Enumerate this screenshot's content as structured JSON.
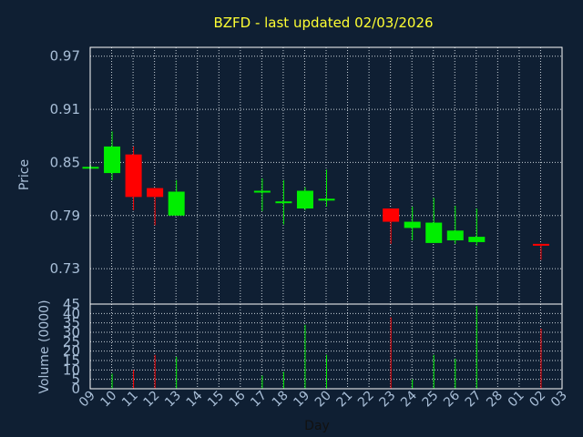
{
  "chart_data": {
    "type": "candlestick",
    "title": "BZFD - last updated 02/03/2026",
    "xlabel": "Day",
    "price_panel": {
      "ylabel": "Price",
      "ylim": [
        0.69,
        0.98
      ],
      "yticks": [
        "0.97",
        "0.91",
        "0.85",
        "0.79",
        "0.73"
      ],
      "ytick_values": [
        0.97,
        0.91,
        0.85,
        0.79,
        0.73
      ]
    },
    "volume_panel": {
      "ylabel": "Volume (0000)",
      "ylim": [
        0,
        45
      ],
      "yticks": [
        "45",
        "40",
        "35",
        "30",
        "25",
        "20",
        "15",
        "10",
        "5",
        "0"
      ],
      "ytick_values": [
        45,
        40,
        35,
        30,
        25,
        20,
        15,
        10,
        5,
        0
      ]
    },
    "x_tick_labels": [
      "09",
      "10",
      "11",
      "12",
      "13",
      "14",
      "15",
      "16",
      "17",
      "18",
      "19",
      "20",
      "21",
      "22",
      "23",
      "24",
      "25",
      "26",
      "27",
      "28",
      "01",
      "02",
      "03"
    ],
    "candles": [
      {
        "day": "09",
        "open": 0.845,
        "high": 0.847,
        "low": 0.845,
        "close": 0.845,
        "volume": 0
      },
      {
        "day": "10",
        "open": 0.838,
        "high": 0.885,
        "low": 0.83,
        "close": 0.868,
        "volume": 8
      },
      {
        "day": "11",
        "open": 0.859,
        "high": 0.868,
        "low": 0.796,
        "close": 0.811,
        "volume": 10
      },
      {
        "day": "12",
        "open": 0.821,
        "high": 0.821,
        "low": 0.779,
        "close": 0.811,
        "volume": 18
      },
      {
        "day": "13",
        "open": 0.79,
        "high": 0.83,
        "low": 0.79,
        "close": 0.817,
        "volume": 17
      },
      {
        "day": "17",
        "open": 0.818,
        "high": 0.832,
        "low": 0.795,
        "close": 0.818,
        "volume": 7
      },
      {
        "day": "18",
        "open": 0.805,
        "high": 0.83,
        "low": 0.78,
        "close": 0.806,
        "volume": 9
      },
      {
        "day": "19",
        "open": 0.798,
        "high": 0.822,
        "low": 0.796,
        "close": 0.818,
        "volume": 34
      },
      {
        "day": "20",
        "open": 0.808,
        "high": 0.842,
        "low": 0.8,
        "close": 0.809,
        "volume": 18
      },
      {
        "day": "23",
        "open": 0.798,
        "high": 0.798,
        "low": 0.758,
        "close": 0.783,
        "volume": 38
      },
      {
        "day": "24",
        "open": 0.776,
        "high": 0.8,
        "low": 0.762,
        "close": 0.783,
        "volume": 5
      },
      {
        "day": "25",
        "open": 0.759,
        "high": 0.81,
        "low": 0.759,
        "close": 0.782,
        "volume": 18
      },
      {
        "day": "26",
        "open": 0.762,
        "high": 0.801,
        "low": 0.758,
        "close": 0.773,
        "volume": 16
      },
      {
        "day": "27",
        "open": 0.76,
        "high": 0.798,
        "low": 0.756,
        "close": 0.766,
        "volume": 44
      },
      {
        "day": "02",
        "open": 0.758,
        "high": 0.758,
        "low": 0.74,
        "close": 0.757,
        "volume": 32
      }
    ],
    "colors": {
      "up": "#00ee00",
      "down": "#ff0000",
      "background": "#0f1f33",
      "grid": "#c8d0d8",
      "axis_text": "#a9bfd8",
      "title": "#ffff33",
      "frame": "#ffffff"
    },
    "grid": true
  }
}
